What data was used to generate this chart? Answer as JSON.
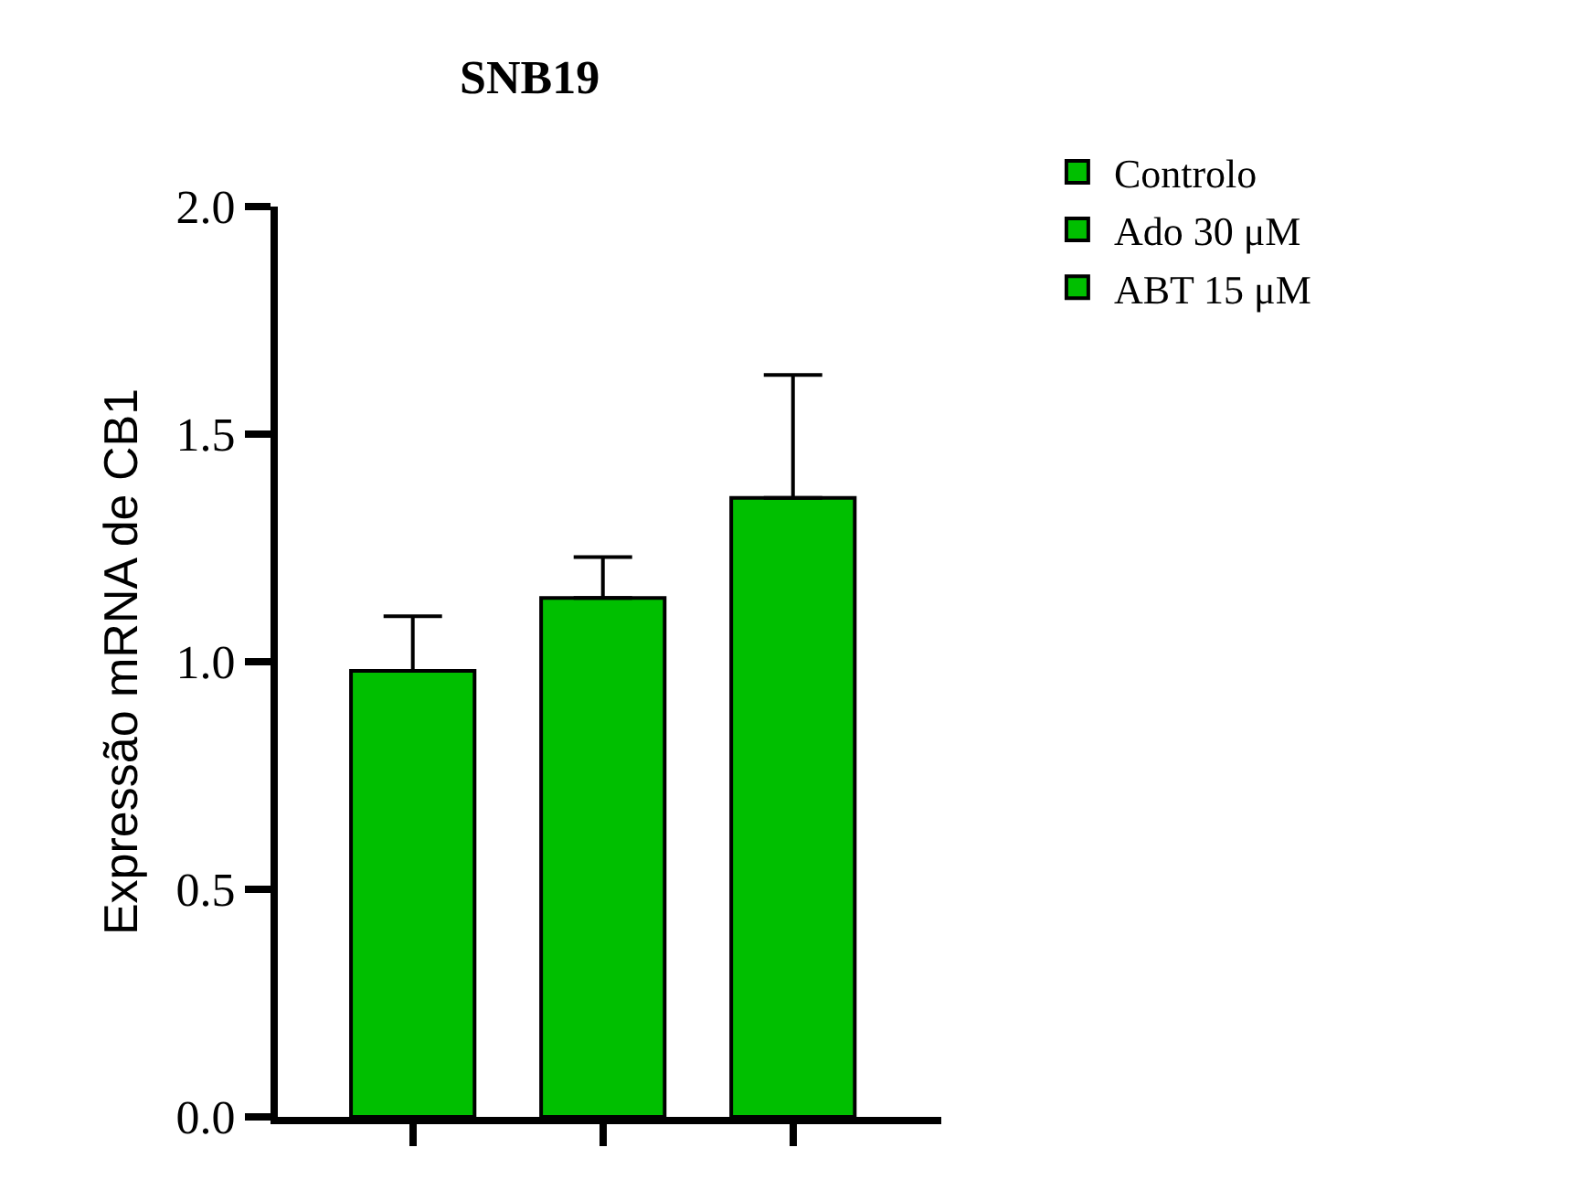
{
  "chart_data": {
    "type": "bar",
    "title": "SNB19",
    "ylabel": "Expressão mRNA de CB1",
    "categories": [
      null,
      null,
      null
    ],
    "series": [
      {
        "name": "Controlo",
        "color": "#00bf00",
        "values": [
          0.98,
          null,
          null
        ],
        "errors": [
          [
            0.98,
            1.1
          ],
          null,
          null
        ]
      },
      {
        "name": "Ado 30 μM",
        "color": "#00bf00",
        "values": [
          null,
          1.14,
          null
        ],
        "errors": [
          null,
          [
            1.14,
            1.23
          ],
          null
        ]
      },
      {
        "name": "ABT 15 μM",
        "color": "#00bf00",
        "values": [
          null,
          null,
          1.36
        ],
        "errors": [
          null,
          null,
          [
            1.36,
            1.63
          ]
        ]
      }
    ],
    "ylim": [
      0,
      2.0
    ],
    "yticks": [
      {
        "value": 0,
        "label": "0.0"
      },
      {
        "value": 0.5,
        "label": "0.5"
      },
      {
        "value": 1,
        "label": "1.0"
      },
      {
        "value": 1.5,
        "label": "1.5"
      },
      {
        "value": 2,
        "label": "2.0"
      }
    ],
    "grid": false,
    "legend": "top right",
    "tick_labels": "y"
  }
}
